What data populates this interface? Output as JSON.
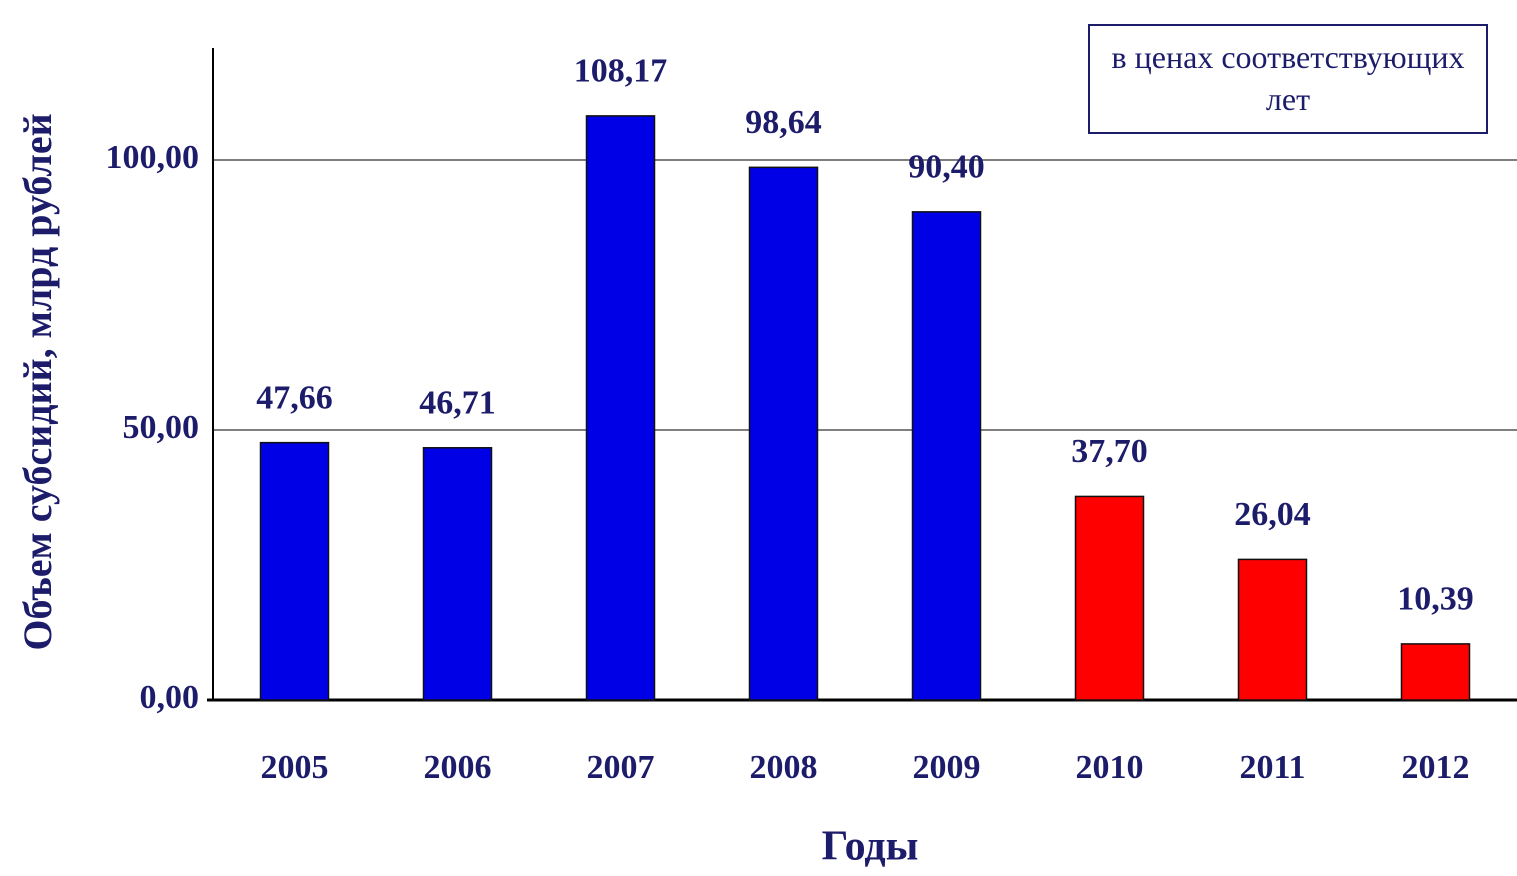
{
  "chart_data": {
    "type": "bar",
    "y_label": "Объем субсидий, млрд рублей",
    "x_label": "Годы",
    "annotation": "в ценах соответствующих лет",
    "categories": [
      "2005",
      "2006",
      "2007",
      "2008",
      "2009",
      "2010",
      "2011",
      "2012"
    ],
    "values": [
      47.66,
      46.71,
      108.17,
      98.64,
      90.4,
      37.7,
      26.04,
      10.39
    ],
    "value_labels": [
      "47,66",
      "46,71",
      "108,17",
      "98,64",
      "90,40",
      "37,70",
      "26,04",
      "10,39"
    ],
    "colors": [
      "#0000e6",
      "#0000e6",
      "#0000e6",
      "#0000e6",
      "#0000e6",
      "#ff0000",
      "#ff0000",
      "#ff0000"
    ],
    "ylim": [
      0,
      120
    ],
    "yticks": [
      {
        "value": 0,
        "label": "0,00"
      },
      {
        "value": 50,
        "label": "50,00"
      },
      {
        "value": 100,
        "label": "100,00"
      }
    ],
    "grid": true
  }
}
